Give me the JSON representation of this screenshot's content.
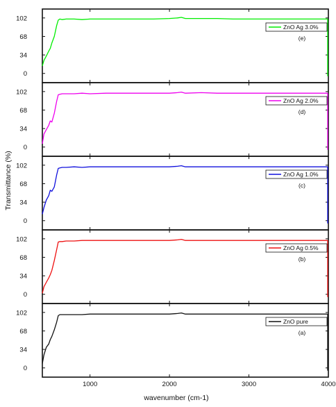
{
  "chart_data": {
    "type": "line",
    "x_axis": {
      "label": "wavenumber (cm-1)",
      "ticks": [
        1000,
        2000,
        3000,
        4000
      ],
      "range": [
        400,
        4000
      ]
    },
    "y_axis": {
      "label": "Transmittance (%)",
      "ticks": [
        0,
        34,
        68,
        102
      ],
      "range": [
        -8,
        112
      ]
    },
    "grid": false,
    "panels": [
      {
        "tag": "(e)",
        "legend": "ZnO Ag 3.0%",
        "color": "#00ee00",
        "x": [
          400,
          420,
          450,
          480,
          500,
          520,
          550,
          580,
          600,
          620,
          650,
          700,
          800,
          900,
          1000,
          1200,
          1400,
          1600,
          1800,
          2000,
          2100,
          2150,
          2200,
          2400,
          2600,
          2800,
          3000,
          3200,
          3400,
          3600,
          3800,
          3990
        ],
        "y": [
          14,
          24,
          32,
          41,
          46,
          56,
          68,
          88,
          98,
          100,
          99,
          100,
          100,
          99,
          100,
          100,
          100,
          100,
          100,
          101,
          102,
          103,
          101,
          101,
          101,
          100,
          100,
          100,
          100,
          100,
          100,
          100
        ]
      },
      {
        "tag": "(d)",
        "legend": "ZnO Ag 2.0%",
        "color": "#ee00ee",
        "x": [
          400,
          420,
          450,
          480,
          500,
          520,
          550,
          580,
          600,
          620,
          650,
          700,
          800,
          900,
          1000,
          1200,
          1400,
          1600,
          1800,
          2000,
          2100,
          2150,
          2200,
          2400,
          2600,
          2800,
          3000,
          3200,
          3400,
          3600,
          3800,
          3990
        ],
        "y": [
          6,
          24,
          32,
          40,
          48,
          46,
          62,
          84,
          96,
          97,
          98,
          98,
          98,
          99,
          98,
          99,
          99,
          99,
          99,
          99,
          100,
          101,
          99,
          100,
          99,
          99,
          99,
          99,
          99,
          99,
          99,
          99
        ]
      },
      {
        "tag": "(c)",
        "legend": "ZnO Ag 1.0%",
        "color": "#1010dd",
        "x": [
          400,
          420,
          450,
          480,
          500,
          520,
          550,
          580,
          600,
          620,
          650,
          700,
          800,
          900,
          1000,
          1200,
          1400,
          1600,
          1800,
          2000,
          2100,
          2150,
          2200,
          2400,
          2600,
          2800,
          3000,
          3200,
          3400,
          3600,
          3800,
          3990
        ],
        "y": [
          12,
          24,
          38,
          46,
          56,
          54,
          62,
          84,
          96,
          97,
          98,
          98,
          99,
          98,
          99,
          99,
          99,
          99,
          99,
          99,
          100,
          101,
          99,
          99,
          99,
          99,
          99,
          99,
          99,
          99,
          99,
          99
        ]
      },
      {
        "tag": "(b)",
        "legend": "ZnO Ag 0.5%",
        "color": "#ee1010",
        "x": [
          400,
          420,
          450,
          480,
          500,
          520,
          550,
          580,
          600,
          620,
          650,
          700,
          800,
          900,
          1000,
          1200,
          1400,
          1600,
          1800,
          2000,
          2100,
          2150,
          2200,
          2400,
          2600,
          2800,
          3000,
          3200,
          3400,
          3600,
          3800,
          3990
        ],
        "y": [
          2,
          14,
          22,
          30,
          36,
          44,
          62,
          82,
          96,
          97,
          97,
          98,
          98,
          99,
          99,
          99,
          99,
          99,
          99,
          99,
          100,
          101,
          99,
          99,
          99,
          99,
          99,
          99,
          99,
          99,
          99,
          99
        ]
      },
      {
        "tag": "(a)",
        "legend": "ZnO pure",
        "color": "#111111",
        "x": [
          400,
          420,
          450,
          480,
          500,
          520,
          550,
          580,
          600,
          620,
          650,
          700,
          800,
          900,
          1000,
          1200,
          1400,
          1600,
          1800,
          2000,
          2100,
          2150,
          2200,
          2400,
          2600,
          2800,
          3000,
          3200,
          3400,
          3600,
          3800,
          3990
        ],
        "y": [
          8,
          24,
          38,
          44,
          52,
          58,
          70,
          84,
          96,
          98,
          98,
          98,
          98,
          98,
          99,
          99,
          99,
          99,
          99,
          99,
          100,
          101,
          99,
          99,
          99,
          99,
          99,
          99,
          99,
          99,
          99,
          99
        ]
      }
    ]
  }
}
